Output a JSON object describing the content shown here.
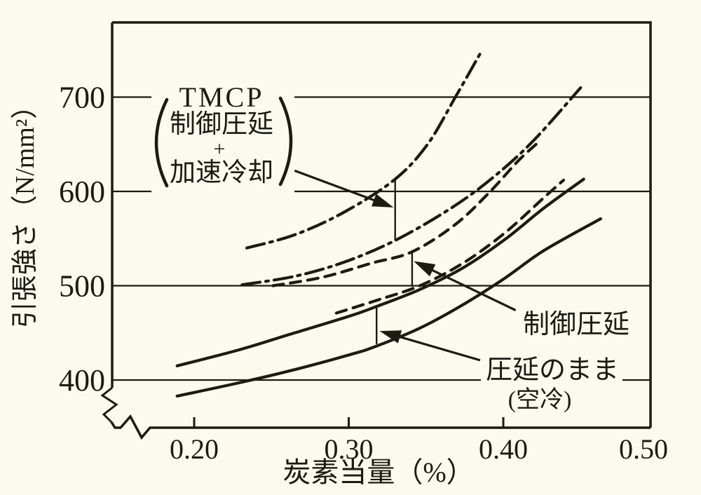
{
  "figure": {
    "kind": "scanned technical line chart",
    "background_color": "#fcfaef",
    "ink_color": "#1c1b12"
  },
  "chart_data": {
    "type": "line",
    "title": "",
    "xlabel": "炭素当量（%）",
    "ylabel": "引張強さ（N/mm²）",
    "xlim": [
      0.147,
      0.495
    ],
    "ylim": [
      390,
      775
    ],
    "x_ticks": [
      0.2,
      0.3,
      0.4,
      0.5
    ],
    "x_tick_labels": [
      "0.20",
      "0.30",
      "0.40",
      "0.50"
    ],
    "y_ticks": [
      400,
      500,
      600,
      700
    ],
    "y_tick_labels": [
      "400",
      "500",
      "600",
      "700"
    ],
    "y_axis_break": true,
    "grid": "horizontal gridlines at each y tick",
    "legend": "none (curve bands identified by leader-arrow labels)",
    "series": [
      {
        "name": "TMCP（制御圧延＋加速冷却）上限",
        "style": "dashdot",
        "points": [
          [
            0.234,
            540
          ],
          [
            0.265,
            554
          ],
          [
            0.297,
            578
          ],
          [
            0.33,
            613
          ],
          [
            0.351,
            650
          ],
          [
            0.369,
            700
          ],
          [
            0.386,
            749
          ]
        ]
      },
      {
        "name": "TMCP（制御圧延＋加速冷却）下限",
        "style": "dashdot",
        "points": [
          [
            0.231,
            501
          ],
          [
            0.265,
            510
          ],
          [
            0.297,
            525
          ],
          [
            0.33,
            548
          ],
          [
            0.365,
            581
          ],
          [
            0.392,
            613
          ],
          [
            0.419,
            653
          ],
          [
            0.45,
            710
          ]
        ]
      },
      {
        "name": "制御圧延 上限",
        "style": "dashed",
        "points": [
          [
            0.251,
            500
          ],
          [
            0.283,
            509
          ],
          [
            0.315,
            524
          ],
          [
            0.341,
            536
          ],
          [
            0.369,
            565
          ],
          [
            0.391,
            599
          ],
          [
            0.41,
            633
          ],
          [
            0.424,
            654
          ]
        ]
      },
      {
        "name": "制御圧延 下限",
        "style": "dashed",
        "points": [
          [
            0.292,
            471
          ],
          [
            0.319,
            485
          ],
          [
            0.346,
            500
          ],
          [
            0.374,
            524
          ],
          [
            0.401,
            556
          ],
          [
            0.426,
            593
          ],
          [
            0.439,
            612
          ]
        ]
      },
      {
        "name": "圧延のまま（空冷）上限",
        "style": "solid",
        "points": [
          [
            0.189,
            415
          ],
          [
            0.229,
            432
          ],
          [
            0.265,
            450
          ],
          [
            0.301,
            468
          ],
          [
            0.318,
            478
          ],
          [
            0.346,
            496
          ],
          [
            0.374,
            519
          ],
          [
            0.401,
            549
          ],
          [
            0.426,
            582
          ],
          [
            0.452,
            613
          ]
        ]
      },
      {
        "name": "圧延のまま（空冷）下限",
        "style": "solid",
        "points": [
          [
            0.189,
            383
          ],
          [
            0.229,
            397
          ],
          [
            0.265,
            411
          ],
          [
            0.301,
            427
          ],
          [
            0.318,
            436
          ],
          [
            0.346,
            455
          ],
          [
            0.374,
            480
          ],
          [
            0.401,
            508
          ],
          [
            0.426,
            537
          ],
          [
            0.463,
            571
          ]
        ]
      }
    ],
    "annotations": {
      "tmcp": {
        "heading": "TMCP",
        "row1": "制御圧延",
        "plus": "+",
        "row2": "加速冷却"
      },
      "controlled_rolling": {
        "text": "制御圧延"
      },
      "as_rolled": {
        "line1": "圧延のまま",
        "line2": "(空冷)"
      },
      "band_bars": [
        {
          "x": 0.33,
          "ts_top": 613,
          "ts_bottom": 548
        },
        {
          "x": 0.341,
          "ts_top": 536,
          "ts_bottom": 499
        },
        {
          "x": 0.318,
          "ts_top": 478,
          "ts_bottom": 438
        }
      ],
      "arrows": [
        {
          "from": [
            0.265,
            622
          ],
          "to": [
            0.329,
            583
          ]
        },
        {
          "from": [
            0.408,
            474
          ],
          "to": [
            0.342,
            526
          ]
        },
        {
          "from": [
            0.385,
            421
          ],
          "to": [
            0.32,
            452
          ]
        }
      ]
    }
  }
}
